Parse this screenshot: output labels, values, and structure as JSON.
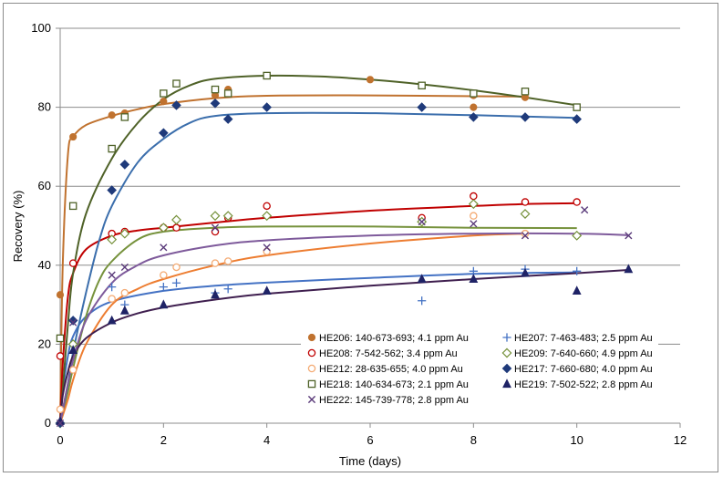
{
  "chart_data": {
    "type": "scatter",
    "title": "",
    "xlabel": "Time (days)",
    "ylabel": "Recovery (%)",
    "xlim": [
      0,
      12
    ],
    "ylim": [
      0,
      100
    ],
    "xticks": [
      "0",
      "2",
      "4",
      "6",
      "8",
      "10",
      "12"
    ],
    "yticks": [
      "0",
      "20",
      "40",
      "60",
      "80",
      "100"
    ],
    "grid": "horizontal",
    "legend_position": "bottom-right (inside plot)",
    "series": [
      {
        "name": "HE206: 140-673-693; 4.1 ppm Au",
        "color": "#c0722f",
        "marker": "circle-filled",
        "points": [
          [
            0,
            32.5
          ],
          [
            0.25,
            72.5
          ],
          [
            1,
            78
          ],
          [
            1.25,
            78.5
          ],
          [
            2,
            81.5
          ],
          [
            2.25,
            80.5
          ],
          [
            3,
            83
          ],
          [
            3.25,
            84.5
          ],
          [
            6,
            87
          ],
          [
            8,
            83
          ],
          [
            8,
            80
          ],
          [
            9,
            82.5
          ]
        ],
        "fit": [
          [
            0,
            0
          ],
          [
            0.05,
            40
          ],
          [
            0.15,
            68
          ],
          [
            0.25,
            72.5
          ],
          [
            0.5,
            75.5
          ],
          [
            1,
            77.8
          ],
          [
            1.5,
            79.5
          ],
          [
            2,
            80.8
          ],
          [
            3,
            82.3
          ],
          [
            4,
            82.9
          ],
          [
            6,
            83
          ],
          [
            8,
            82.8
          ],
          [
            9,
            82.7
          ]
        ]
      },
      {
        "name": "HE207: 7-463-483; 2.5 ppm Au",
        "color": "#4472c4",
        "marker": "plus",
        "points": [
          [
            0,
            0
          ],
          [
            0.25,
            26
          ],
          [
            1,
            34.5
          ],
          [
            1.25,
            30
          ],
          [
            2,
            34.5
          ],
          [
            2.25,
            35.5
          ],
          [
            3,
            33
          ],
          [
            3.25,
            34
          ],
          [
            7,
            31
          ],
          [
            8,
            38.5
          ],
          [
            9,
            39
          ],
          [
            10,
            38.5
          ]
        ],
        "fit": [
          [
            0,
            0
          ],
          [
            0.05,
            8
          ],
          [
            0.15,
            17
          ],
          [
            0.25,
            22
          ],
          [
            0.5,
            27
          ],
          [
            1,
            30.8
          ],
          [
            2,
            33.5
          ],
          [
            3,
            34.8
          ],
          [
            4,
            35.6
          ],
          [
            6,
            36.8
          ],
          [
            8,
            37.8
          ],
          [
            10,
            38.2
          ]
        ]
      },
      {
        "name": "HE208: 7-542-562; 3.4 ppm Au",
        "color": "#c00000",
        "marker": "circle-open",
        "points": [
          [
            0,
            17
          ],
          [
            0.25,
            40.5
          ],
          [
            1,
            48
          ],
          [
            1.25,
            48.5
          ],
          [
            2,
            49.5
          ],
          [
            2.25,
            49.5
          ],
          [
            3,
            48.5
          ],
          [
            3.25,
            52
          ],
          [
            4,
            55
          ],
          [
            7,
            52
          ],
          [
            8,
            57.5
          ],
          [
            9,
            56
          ],
          [
            10,
            56
          ]
        ],
        "fit": [
          [
            0,
            0
          ],
          [
            0.05,
            15
          ],
          [
            0.15,
            32
          ],
          [
            0.25,
            38
          ],
          [
            0.5,
            44
          ],
          [
            1,
            47.5
          ],
          [
            1.5,
            48.8
          ],
          [
            2,
            49.5
          ],
          [
            3,
            50.8
          ],
          [
            4,
            52
          ],
          [
            6,
            53.8
          ],
          [
            8,
            55
          ],
          [
            9,
            55.5
          ],
          [
            10,
            55.7
          ]
        ]
      },
      {
        "name": "HE209: 7-640-660; 4.9 ppm Au",
        "color": "#76923c",
        "marker": "diamond-open",
        "points": [
          [
            0,
            0
          ],
          [
            0.25,
            20
          ],
          [
            1,
            46.5
          ],
          [
            1.25,
            48
          ],
          [
            2,
            49.5
          ],
          [
            2.25,
            51.5
          ],
          [
            3,
            52.5
          ],
          [
            3.25,
            52.5
          ],
          [
            4,
            52.5
          ],
          [
            7,
            51
          ],
          [
            8,
            55.5
          ],
          [
            9,
            53
          ],
          [
            10,
            47.5
          ]
        ],
        "fit": [
          [
            0,
            0
          ],
          [
            0.15,
            8
          ],
          [
            0.25,
            14
          ],
          [
            0.5,
            27
          ],
          [
            0.75,
            36
          ],
          [
            1,
            41
          ],
          [
            1.5,
            46.5
          ],
          [
            2,
            48.5
          ],
          [
            3,
            49.5
          ],
          [
            4,
            49.8
          ],
          [
            6,
            49.8
          ],
          [
            8,
            49.5
          ],
          [
            10,
            49.4
          ]
        ]
      },
      {
        "name": "HE212: 28-635-655; 4.0 ppm Au",
        "color": "#f4ab74",
        "marker": "circle-open",
        "points": [
          [
            0,
            3.5
          ],
          [
            0.25,
            13.5
          ],
          [
            1,
            31.5
          ],
          [
            1.25,
            33
          ],
          [
            2,
            37.5
          ],
          [
            2.25,
            39.5
          ],
          [
            3,
            40.5
          ],
          [
            3.25,
            41
          ],
          [
            4,
            43.5
          ],
          [
            8,
            52.5
          ],
          [
            9,
            48
          ]
        ],
        "fit": [
          [
            0,
            0
          ],
          [
            0.15,
            6
          ],
          [
            0.25,
            11
          ],
          [
            0.5,
            20
          ],
          [
            1,
            30
          ],
          [
            1.5,
            34
          ],
          [
            2,
            36.5
          ],
          [
            3,
            40
          ],
          [
            4,
            42.5
          ],
          [
            6,
            45.5
          ],
          [
            8,
            47.5
          ],
          [
            9,
            48
          ]
        ],
        "fit_color": "#ed7d31"
      },
      {
        "name": "HE217: 7-660-680; 4.0 ppm Au",
        "color": "#1f3a7a",
        "marker": "diamond-filled",
        "points": [
          [
            0,
            0
          ],
          [
            0.25,
            26
          ],
          [
            1,
            59
          ],
          [
            1.25,
            65.5
          ],
          [
            2,
            73.5
          ],
          [
            2.25,
            80.5
          ],
          [
            3,
            81
          ],
          [
            3.25,
            77
          ],
          [
            4,
            80
          ],
          [
            7,
            80
          ],
          [
            8,
            77.5
          ],
          [
            9,
            77.5
          ],
          [
            10,
            77
          ]
        ],
        "fit": [
          [
            0,
            0
          ],
          [
            0.15,
            10
          ],
          [
            0.25,
            18
          ],
          [
            0.5,
            33
          ],
          [
            0.75,
            46
          ],
          [
            1,
            55
          ],
          [
            1.5,
            66
          ],
          [
            2,
            72
          ],
          [
            2.5,
            76
          ],
          [
            3,
            77.8
          ],
          [
            4,
            78.5
          ],
          [
            6,
            78.5
          ],
          [
            8,
            78
          ],
          [
            10,
            77.3
          ]
        ],
        "fit_color": "#3b6eac"
      },
      {
        "name": "HE218: 140-634-673; 2.1 ppm Au",
        "color": "#4f6228",
        "marker": "square-open",
        "points": [
          [
            0,
            21.5
          ],
          [
            0.25,
            55
          ],
          [
            1,
            69.5
          ],
          [
            1.25,
            77.5
          ],
          [
            2,
            83.5
          ],
          [
            2.25,
            86
          ],
          [
            3,
            84.5
          ],
          [
            3.25,
            83.5
          ],
          [
            4,
            88
          ],
          [
            7,
            85.5
          ],
          [
            8,
            83.5
          ],
          [
            9,
            84
          ],
          [
            10,
            80
          ]
        ],
        "fit": [
          [
            0,
            0
          ],
          [
            0.15,
            25
          ],
          [
            0.25,
            38
          ],
          [
            0.5,
            53
          ],
          [
            1,
            67
          ],
          [
            1.5,
            76
          ],
          [
            2,
            82
          ],
          [
            2.5,
            85.5
          ],
          [
            3,
            87.2
          ],
          [
            4,
            88
          ],
          [
            5,
            87.8
          ],
          [
            6,
            87
          ],
          [
            7,
            85.8
          ],
          [
            8,
            84.3
          ],
          [
            9,
            82.5
          ],
          [
            10,
            80.5
          ]
        ]
      },
      {
        "name": "HE219: 7-502-522; 2.8 ppm Au",
        "color": "#1f2366",
        "marker": "triangle-filled",
        "points": [
          [
            0,
            0.5
          ],
          [
            0.25,
            18.5
          ],
          [
            1,
            26
          ],
          [
            1.25,
            28.5
          ],
          [
            2,
            30
          ],
          [
            3,
            32.5
          ],
          [
            4,
            33.5
          ],
          [
            7,
            36.5
          ],
          [
            8,
            36.5
          ],
          [
            9,
            38
          ],
          [
            10,
            33.5
          ],
          [
            11,
            39
          ]
        ],
        "fit": [
          [
            0,
            0
          ],
          [
            0.05,
            7
          ],
          [
            0.15,
            13
          ],
          [
            0.25,
            17
          ],
          [
            0.5,
            21.5
          ],
          [
            1,
            25.5
          ],
          [
            1.5,
            27.8
          ],
          [
            2,
            29.3
          ],
          [
            3,
            31.3
          ],
          [
            4,
            32.8
          ],
          [
            6,
            34.8
          ],
          [
            8,
            36.5
          ],
          [
            10,
            38
          ],
          [
            11,
            38.8
          ]
        ],
        "fit_color": "#3f1f4f"
      },
      {
        "name": "HE222: 145-739-778; 2.8 ppm Au",
        "color": "#5a3a7a",
        "marker": "x",
        "points": [
          [
            0,
            0
          ],
          [
            0.25,
            25.5
          ],
          [
            1,
            37.5
          ],
          [
            1.25,
            39.5
          ],
          [
            2,
            44.5
          ],
          [
            3,
            49.5
          ],
          [
            4,
            44.5
          ],
          [
            7,
            51
          ],
          [
            8,
            50.5
          ],
          [
            9,
            47.5
          ],
          [
            10.15,
            54
          ],
          [
            11,
            47.5
          ]
        ],
        "fit": [
          [
            0,
            0
          ],
          [
            0.15,
            10
          ],
          [
            0.25,
            16
          ],
          [
            0.5,
            26
          ],
          [
            1,
            35.5
          ],
          [
            1.5,
            40
          ],
          [
            2,
            42.5
          ],
          [
            3,
            45
          ],
          [
            4,
            46.3
          ],
          [
            6,
            47.5
          ],
          [
            8,
            48
          ],
          [
            10,
            48
          ],
          [
            11,
            47.6
          ]
        ],
        "fit_color": "#7e5a9b"
      }
    ]
  }
}
